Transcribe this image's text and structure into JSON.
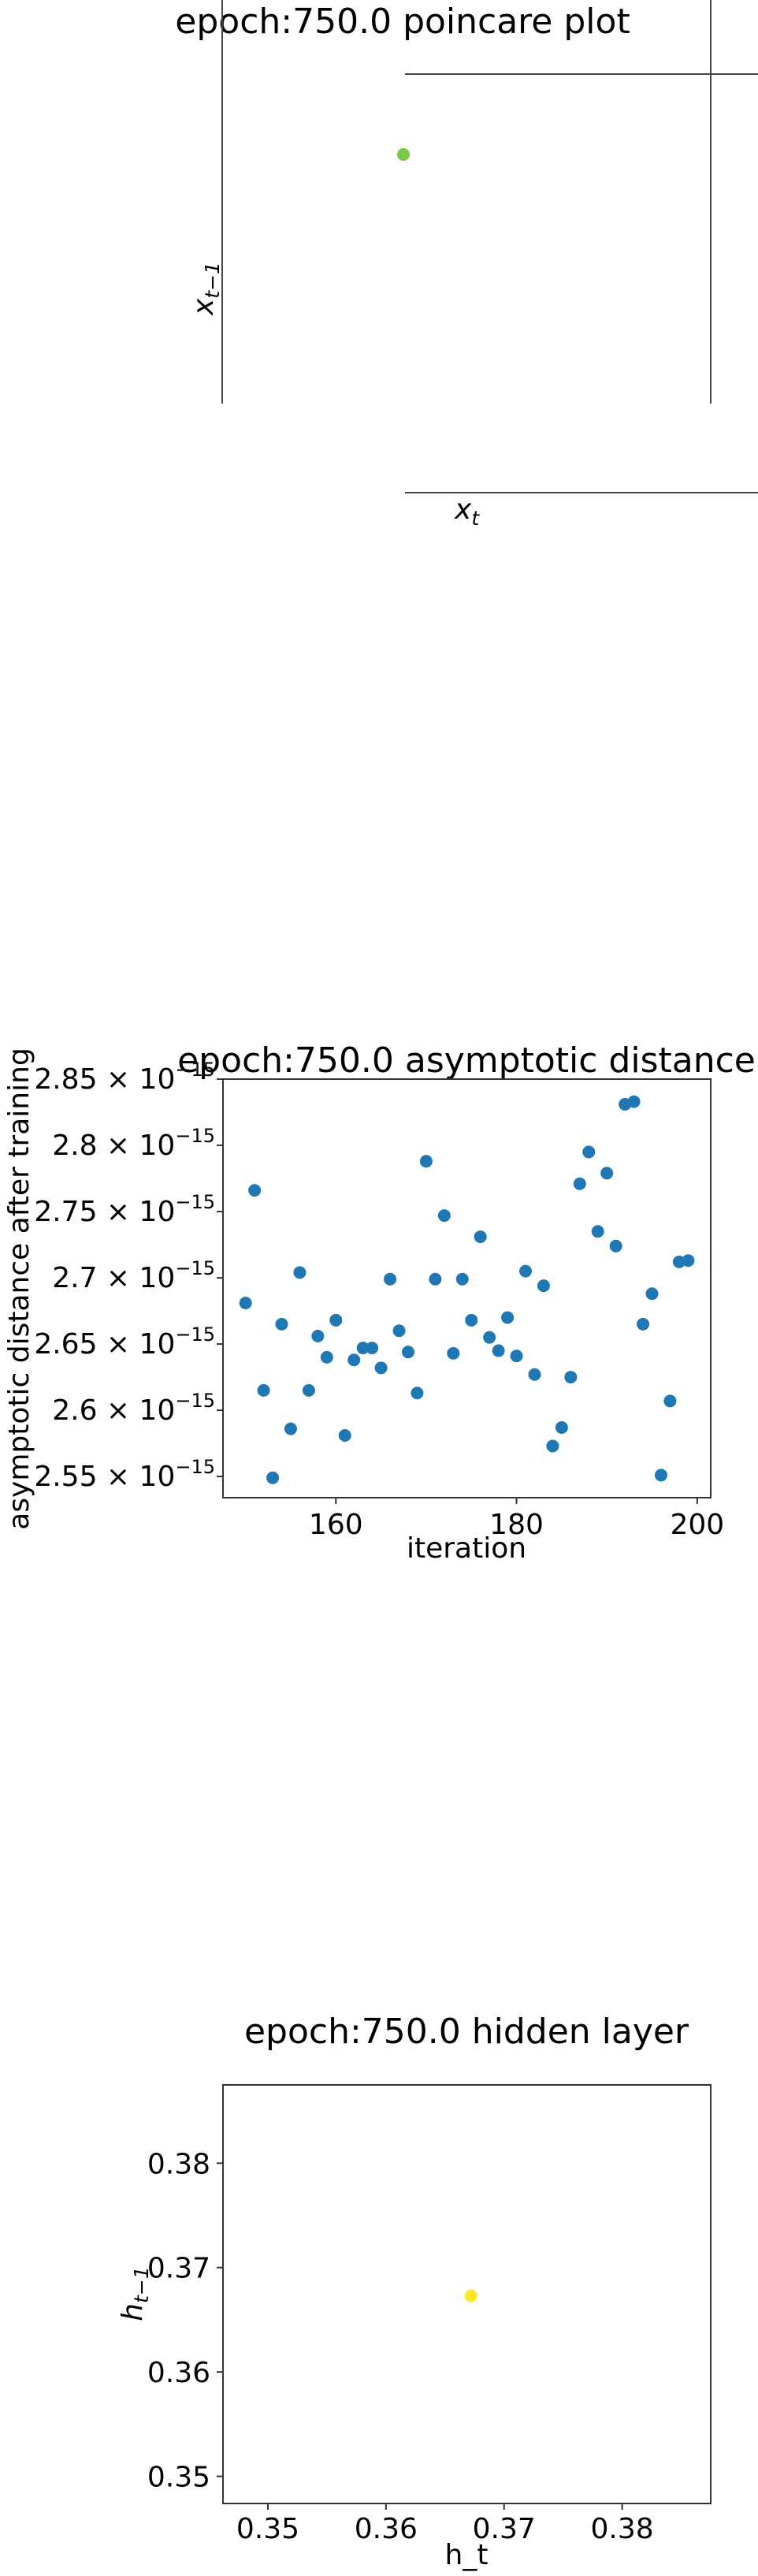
{
  "chart_data": [
    {
      "type": "scatter",
      "title": "epoch:750.0 poincare plot",
      "xlabel": "x_t",
      "xlabel_main": "x",
      "xlabel_sub": "t",
      "ylabel": "x_{t-1}",
      "ylabel_main": "x",
      "ylabel_sub": "t−1",
      "grid": false,
      "points": [
        {
          "x": 0,
          "y": 0,
          "color": "#7ac943"
        }
      ]
    },
    {
      "type": "scatter",
      "title": "epoch:750.0 asymptotic distance",
      "xlabel": "iteration",
      "ylabel": "asymptotic distance after training",
      "xlim": [
        147.5,
        201.5
      ],
      "ylim": [
        2.534,
        2.85
      ],
      "y_scale_note": "×10^-15",
      "xticks": [
        "160",
        "180",
        "200"
      ],
      "yticks": [
        {
          "value": 2.55,
          "mantissa": "2.55"
        },
        {
          "value": 2.6,
          "mantissa": "2.6"
        },
        {
          "value": 2.65,
          "mantissa": "2.65"
        },
        {
          "value": 2.7,
          "mantissa": "2.7"
        },
        {
          "value": 2.75,
          "mantissa": "2.75"
        },
        {
          "value": 2.8,
          "mantissa": "2.8"
        },
        {
          "value": 2.85,
          "mantissa": "2.85"
        }
      ],
      "ytick_base": "10",
      "ytick_exp": "−15",
      "ytick_times": "×",
      "grid": false,
      "color": "#1f77b4",
      "x": [
        150,
        151,
        152,
        153,
        154,
        155,
        156,
        157,
        158,
        159,
        160,
        161,
        162,
        163,
        164,
        165,
        166,
        167,
        168,
        169,
        170,
        171,
        172,
        173,
        174,
        175,
        176,
        177,
        178,
        179,
        180,
        181,
        182,
        183,
        184,
        185,
        186,
        187,
        188,
        189,
        190,
        191,
        192,
        193,
        194,
        195,
        196,
        197,
        198,
        199
      ],
      "y": [
        2.681,
        2.766,
        2.615,
        2.549,
        2.665,
        2.586,
        2.704,
        2.615,
        2.656,
        2.64,
        2.668,
        2.581,
        2.638,
        2.647,
        2.647,
        2.632,
        2.699,
        2.66,
        2.644,
        2.613,
        2.788,
        2.699,
        2.747,
        2.643,
        2.699,
        2.668,
        2.731,
        2.655,
        2.645,
        2.67,
        2.641,
        2.705,
        2.627,
        2.694,
        2.573,
        2.587,
        2.625,
        2.771,
        2.795,
        2.735,
        2.779,
        2.724,
        2.831,
        2.833,
        2.665,
        2.688,
        2.551,
        2.607,
        2.712,
        2.713
      ]
    },
    {
      "type": "scatter",
      "title": "epoch:750.0 hidden layer",
      "xlabel": "h_t",
      "ylabel": "h_{t-1}",
      "ylabel_main": "h",
      "ylabel_sub": "t−1",
      "xlim": [
        0.3462,
        0.3875
      ],
      "ylim": [
        0.3474,
        0.3875
      ],
      "xticks": [
        {
          "value": 0.35,
          "label": "0.35"
        },
        {
          "value": 0.36,
          "label": "0.36"
        },
        {
          "value": 0.37,
          "label": "0.37"
        },
        {
          "value": 0.38,
          "label": "0.38"
        }
      ],
      "yticks": [
        {
          "value": 0.35,
          "label": "0.35"
        },
        {
          "value": 0.36,
          "label": "0.36"
        },
        {
          "value": 0.37,
          "label": "0.37"
        },
        {
          "value": 0.38,
          "label": "0.38"
        }
      ],
      "grid": false,
      "points": [
        {
          "x": 0.3672,
          "y": 0.3673,
          "color": "#fde725"
        }
      ]
    }
  ]
}
